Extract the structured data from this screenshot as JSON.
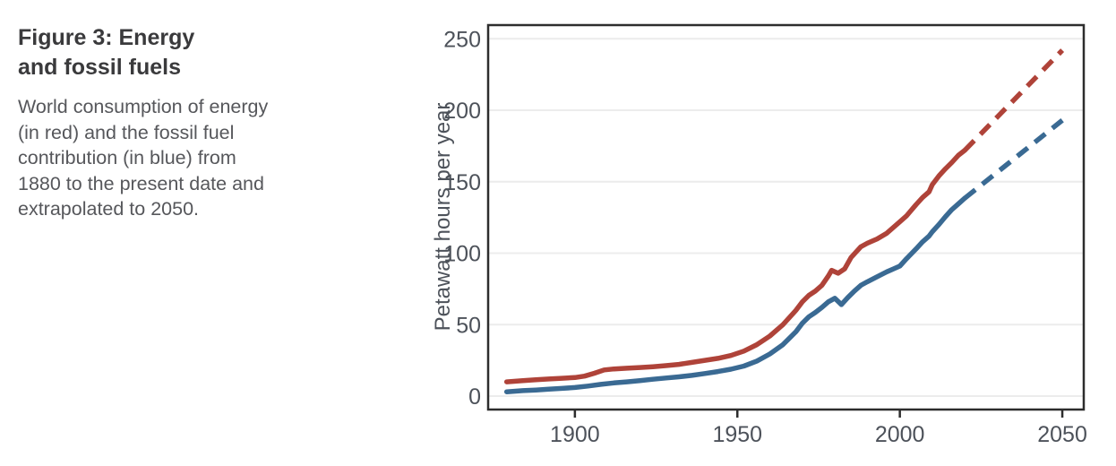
{
  "figure": {
    "title": "Figure 3: Energy\nand fossil fuels",
    "description": "World consumption of energy\n(in red) and the fossil fuel\ncontribution (in blue) from\n1880 to the present date and\nextrapolated to 2050."
  },
  "colors": {
    "energy_red": "#af4339",
    "fossil_blue": "#3a6a93",
    "gridline": "#ececec",
    "axis_border": "#2d2d2d",
    "tick_text": "#4d525a"
  },
  "chart_data": {
    "type": "line",
    "title": "",
    "xlabel": "",
    "ylabel": "Petawatt hours per year",
    "xlim": [
      1873.3,
      2056.6
    ],
    "ylim": [
      -9.4,
      259.6
    ],
    "x_ticks": [
      1900,
      1950,
      2000,
      2050
    ],
    "y_ticks": [
      0,
      50,
      100,
      150,
      200,
      250
    ],
    "grid": "horizontal-only",
    "legend": "none",
    "series": [
      {
        "name": "World energy consumption (historical)",
        "color": "#af4339",
        "style": "solid",
        "points": [
          [
            1879,
            10
          ],
          [
            1884,
            10.8
          ],
          [
            1888,
            11.4
          ],
          [
            1892,
            12
          ],
          [
            1896,
            12.5
          ],
          [
            1900,
            13
          ],
          [
            1903,
            14
          ],
          [
            1906,
            16
          ],
          [
            1909,
            18.3
          ],
          [
            1912,
            19
          ],
          [
            1916,
            19.5
          ],
          [
            1920,
            20
          ],
          [
            1924,
            20.6
          ],
          [
            1928,
            21.3
          ],
          [
            1932,
            22.2
          ],
          [
            1936,
            23.6
          ],
          [
            1940,
            25
          ],
          [
            1944,
            26.4
          ],
          [
            1948,
            28.4
          ],
          [
            1952,
            31.5
          ],
          [
            1956,
            36
          ],
          [
            1960,
            42
          ],
          [
            1964,
            50
          ],
          [
            1968,
            60
          ],
          [
            1970,
            66
          ],
          [
            1972,
            70.5
          ],
          [
            1974,
            73.5
          ],
          [
            1976,
            77.5
          ],
          [
            1978,
            84
          ],
          [
            1979,
            88
          ],
          [
            1981,
            86
          ],
          [
            1983,
            89
          ],
          [
            1985,
            97
          ],
          [
            1988,
            104.5
          ],
          [
            1990,
            107
          ],
          [
            1993,
            110
          ],
          [
            1996,
            114
          ],
          [
            1998,
            118
          ],
          [
            2000,
            122
          ],
          [
            2002,
            126
          ],
          [
            2005,
            134
          ],
          [
            2007,
            139
          ],
          [
            2009,
            143
          ],
          [
            2010,
            148
          ],
          [
            2012,
            154
          ],
          [
            2014,
            159
          ],
          [
            2016,
            163.5
          ],
          [
            2018,
            168.5
          ],
          [
            2020,
            172
          ]
        ]
      },
      {
        "name": "World energy consumption (extrapolated)",
        "color": "#af4339",
        "style": "dashed",
        "points": [
          [
            2020,
            172
          ],
          [
            2050,
            242
          ]
        ]
      },
      {
        "name": "Fossil fuel contribution (historical)",
        "color": "#3a6a93",
        "style": "solid",
        "points": [
          [
            1879,
            3
          ],
          [
            1884,
            3.8
          ],
          [
            1888,
            4.3
          ],
          [
            1892,
            4.9
          ],
          [
            1896,
            5.4
          ],
          [
            1900,
            6
          ],
          [
            1904,
            7
          ],
          [
            1908,
            8.2
          ],
          [
            1912,
            9.2
          ],
          [
            1916,
            10
          ],
          [
            1920,
            10.8
          ],
          [
            1924,
            11.8
          ],
          [
            1928,
            12.7
          ],
          [
            1932,
            13.5
          ],
          [
            1936,
            14.5
          ],
          [
            1940,
            15.8
          ],
          [
            1944,
            17.2
          ],
          [
            1948,
            18.8
          ],
          [
            1952,
            21
          ],
          [
            1956,
            24.5
          ],
          [
            1960,
            29.5
          ],
          [
            1964,
            36
          ],
          [
            1968,
            45
          ],
          [
            1970,
            51
          ],
          [
            1972,
            55.5
          ],
          [
            1974,
            58.5
          ],
          [
            1976,
            62
          ],
          [
            1978,
            66
          ],
          [
            1980,
            68.5
          ],
          [
            1982,
            64
          ],
          [
            1984,
            69
          ],
          [
            1986,
            73.5
          ],
          [
            1988,
            77.5
          ],
          [
            1990,
            80
          ],
          [
            1993,
            83.5
          ],
          [
            1996,
            87
          ],
          [
            1998,
            89
          ],
          [
            2000,
            91
          ],
          [
            2002,
            96
          ],
          [
            2005,
            103
          ],
          [
            2007,
            108
          ],
          [
            2009,
            112
          ],
          [
            2010,
            115
          ],
          [
            2012,
            120
          ],
          [
            2014,
            125.5
          ],
          [
            2016,
            130.5
          ],
          [
            2018,
            134.5
          ],
          [
            2020,
            138.5
          ]
        ]
      },
      {
        "name": "Fossil fuel contribution (extrapolated)",
        "color": "#3a6a93",
        "style": "dashed",
        "points": [
          [
            2020,
            138.5
          ],
          [
            2050,
            193
          ]
        ]
      }
    ]
  }
}
